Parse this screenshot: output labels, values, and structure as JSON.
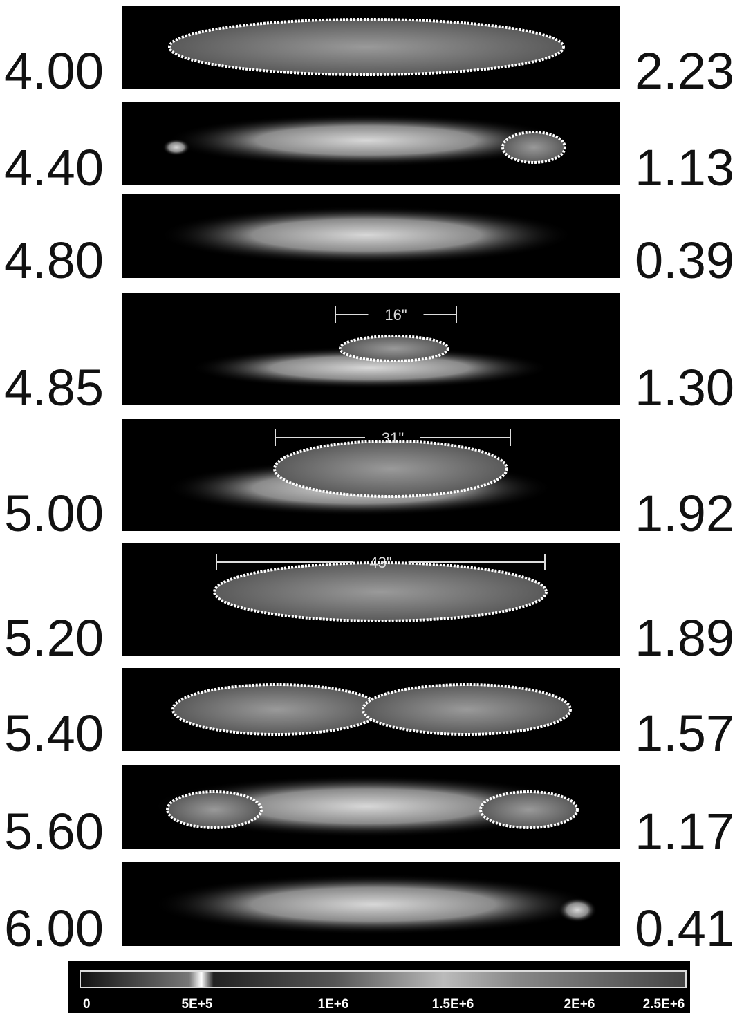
{
  "panels": [
    {
      "left": "4.00",
      "right": "2.23"
    },
    {
      "left": "4.40",
      "right": "1.13"
    },
    {
      "left": "4.80",
      "right": "0.39"
    },
    {
      "left": "4.85",
      "right": "1.30",
      "scale": "16\""
    },
    {
      "left": "5.00",
      "right": "1.92",
      "scale": "31\""
    },
    {
      "left": "5.20",
      "right": "1.89",
      "scale": "43\""
    },
    {
      "left": "5.40",
      "right": "1.57"
    },
    {
      "left": "5.60",
      "right": "1.17"
    },
    {
      "left": "6.00",
      "right": "0.41"
    }
  ],
  "colorbar": {
    "labels": [
      "0",
      "5E+5",
      "1E+6",
      "1.5E+6",
      "2E+6",
      "2.5E+6"
    ]
  }
}
